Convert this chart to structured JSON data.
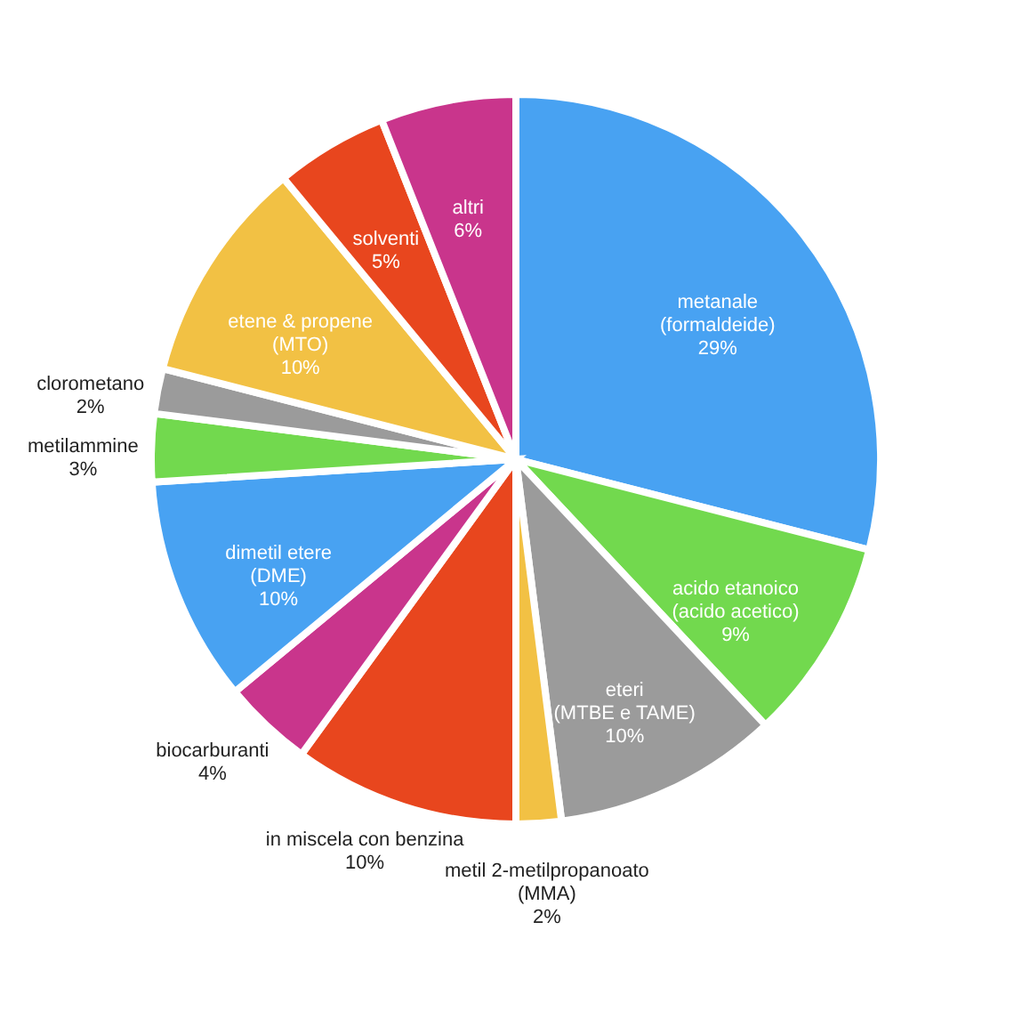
{
  "chart_data": {
    "type": "pie",
    "categories": [
      "metanale\n(formaldeide)",
      "acido etanoico\n(acido acetico)",
      "eteri\n(MTBE e TAME)",
      "metil 2-metilpropanoato\n(MMA)",
      "in miscela con benzina",
      "biocarburanti",
      "dimetil etere\n(DME)",
      "metilammine",
      "clorometano",
      "etene & propene\n(MTO)",
      "solventi",
      "altri"
    ],
    "values": [
      29,
      9,
      10,
      2,
      10,
      4,
      10,
      3,
      2,
      10,
      5,
      6
    ],
    "value_labels": [
      "29%",
      "9%",
      "10%",
      "2%",
      "10%",
      "4%",
      "10%",
      "3%",
      "2%",
      "10%",
      "5%",
      "6%"
    ],
    "colors": [
      "#48a2f2",
      "#72d94e",
      "#9b9b9b",
      "#f2c144",
      "#e8461e",
      "#c9358c",
      "#48a2f2",
      "#72d94e",
      "#9b9b9b",
      "#f2c144",
      "#e8461e",
      "#c9358c"
    ]
  }
}
